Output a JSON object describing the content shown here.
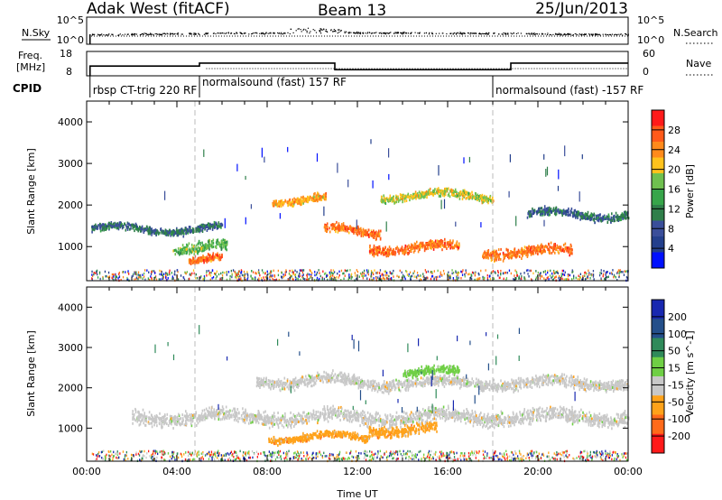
{
  "header": {
    "radar": "Adak West (fitACF)",
    "beam": "Beam 13",
    "date": "25/Jun/2013"
  },
  "top_panels": {
    "nsky_label": "N.Sky",
    "nsky_ticks": [
      "10^5",
      "10^0"
    ],
    "nsearch_label": "N.Search",
    "nsearch_ticks": [
      "10^5",
      "10^0"
    ],
    "freq_label": "Freq.",
    "freq_unit": "[MHz]",
    "freq_ticks": [
      "18",
      "8"
    ],
    "nave_label": "Nave",
    "nave_ticks": [
      "60",
      "0"
    ],
    "cpid_label": "CPID",
    "cpid_segments": [
      {
        "label": "rbsp CT-trig 220 RF",
        "start_hour": 0.15,
        "end_hour": 5.0
      },
      {
        "label": "normalsound (fast) 157 RF",
        "start_hour": 5.0,
        "end_hour": 18.0
      },
      {
        "label": "normalsound (fast) -157 RF",
        "start_hour": 18.0,
        "end_hour": 24.0
      }
    ],
    "freq_steps": [
      {
        "start_hour": 0.15,
        "end_hour": 5.0,
        "mhz": 12.0
      },
      {
        "start_hour": 5.0,
        "end_hour": 11.0,
        "mhz": 13.2
      },
      {
        "start_hour": 11.0,
        "end_hour": 18.8,
        "mhz": 10.5
      },
      {
        "start_hour": 18.8,
        "end_hour": 24.0,
        "mhz": 13.2
      }
    ]
  },
  "chart_data": [
    {
      "type": "heatmap",
      "quantity": "Power",
      "ylabel": "Slant Range [km]",
      "xlim_hours": [
        0,
        24
      ],
      "ylim_km": [
        180,
        4500
      ],
      "y_ticks": [
        "4000",
        "3000",
        "2000",
        "1000"
      ],
      "colorbar_label": "Power [dB]",
      "colorbar_ticks": [
        "28",
        "24",
        "20",
        "16",
        "12",
        "8",
        "4"
      ],
      "colors": [
        "#0010ff",
        "#233f8c",
        "#3a4e9a",
        "#2f7f4a",
        "#37a54a",
        "#6fc04f",
        "#ffc21c",
        "#ff8a1b",
        "#ff5a1a",
        "#ff1a1a"
      ],
      "echo_bands": [
        {
          "start_hour": 0.2,
          "end_hour": 6.0,
          "range_km": 1450,
          "width_km": 120,
          "power_db": 8
        },
        {
          "start_hour": 3.8,
          "end_hour": 6.2,
          "range_km": 1000,
          "width_km": 180,
          "power_db": 16
        },
        {
          "start_hour": 4.5,
          "end_hour": 6.0,
          "range_km": 700,
          "width_km": 130,
          "power_db": 26
        },
        {
          "start_hour": 8.2,
          "end_hour": 10.6,
          "range_km": 2150,
          "width_km": 120,
          "power_db": 22
        },
        {
          "start_hour": 10.5,
          "end_hour": 13.0,
          "range_km": 1400,
          "width_km": 150,
          "power_db": 26
        },
        {
          "start_hour": 13.0,
          "end_hour": 18.0,
          "range_km": 2250,
          "width_km": 130,
          "power_db": 20
        },
        {
          "start_hour": 12.5,
          "end_hour": 16.5,
          "range_km": 1000,
          "width_km": 160,
          "power_db": 24
        },
        {
          "start_hour": 17.5,
          "end_hour": 21.5,
          "range_km": 900,
          "width_km": 170,
          "power_db": 24
        },
        {
          "start_hour": 19.5,
          "end_hour": 24.0,
          "range_km": 1800,
          "width_km": 140,
          "power_db": 10
        }
      ]
    },
    {
      "type": "heatmap",
      "quantity": "Velocity",
      "ylabel": "Slant Range [km]",
      "xlabel": "Time UT",
      "xlim_hours": [
        0,
        24
      ],
      "ylim_km": [
        180,
        4500
      ],
      "x_ticks": [
        "00:00",
        "04:00",
        "08:00",
        "12:00",
        "16:00",
        "20:00",
        "00:00"
      ],
      "y_ticks": [
        "4000",
        "3000",
        "2000",
        "1000"
      ],
      "colorbar_label": "Velocity [m s^-1]",
      "colorbar_ticks": [
        "200",
        "100",
        "50",
        "15",
        "-15",
        "-50",
        "-100",
        "-200"
      ],
      "colors": [
        "#1828b0",
        "#244f8a",
        "#2f8a5a",
        "#6fcf45",
        "#c8c8c8",
        "#ffa21a",
        "#ff6a1a",
        "#ff1a1a"
      ],
      "echo_bands": [
        {
          "start_hour": 7.5,
          "end_hour": 12.0,
          "range_km": 2200,
          "width_km": 200,
          "velocity": 0
        },
        {
          "start_hour": 12.0,
          "end_hour": 24.0,
          "range_km": 2150,
          "width_km": 200,
          "velocity": 0
        },
        {
          "start_hour": 14.0,
          "end_hour": 16.5,
          "range_km": 2400,
          "width_km": 150,
          "velocity": 40
        },
        {
          "start_hour": 2.0,
          "end_hour": 24.0,
          "range_km": 1300,
          "width_km": 250,
          "velocity": 0
        },
        {
          "start_hour": 8.0,
          "end_hour": 12.5,
          "range_km": 800,
          "width_km": 130,
          "velocity": -40
        },
        {
          "start_hour": 12.5,
          "end_hour": 15.5,
          "range_km": 1000,
          "width_km": 180,
          "velocity": -50
        }
      ]
    }
  ]
}
